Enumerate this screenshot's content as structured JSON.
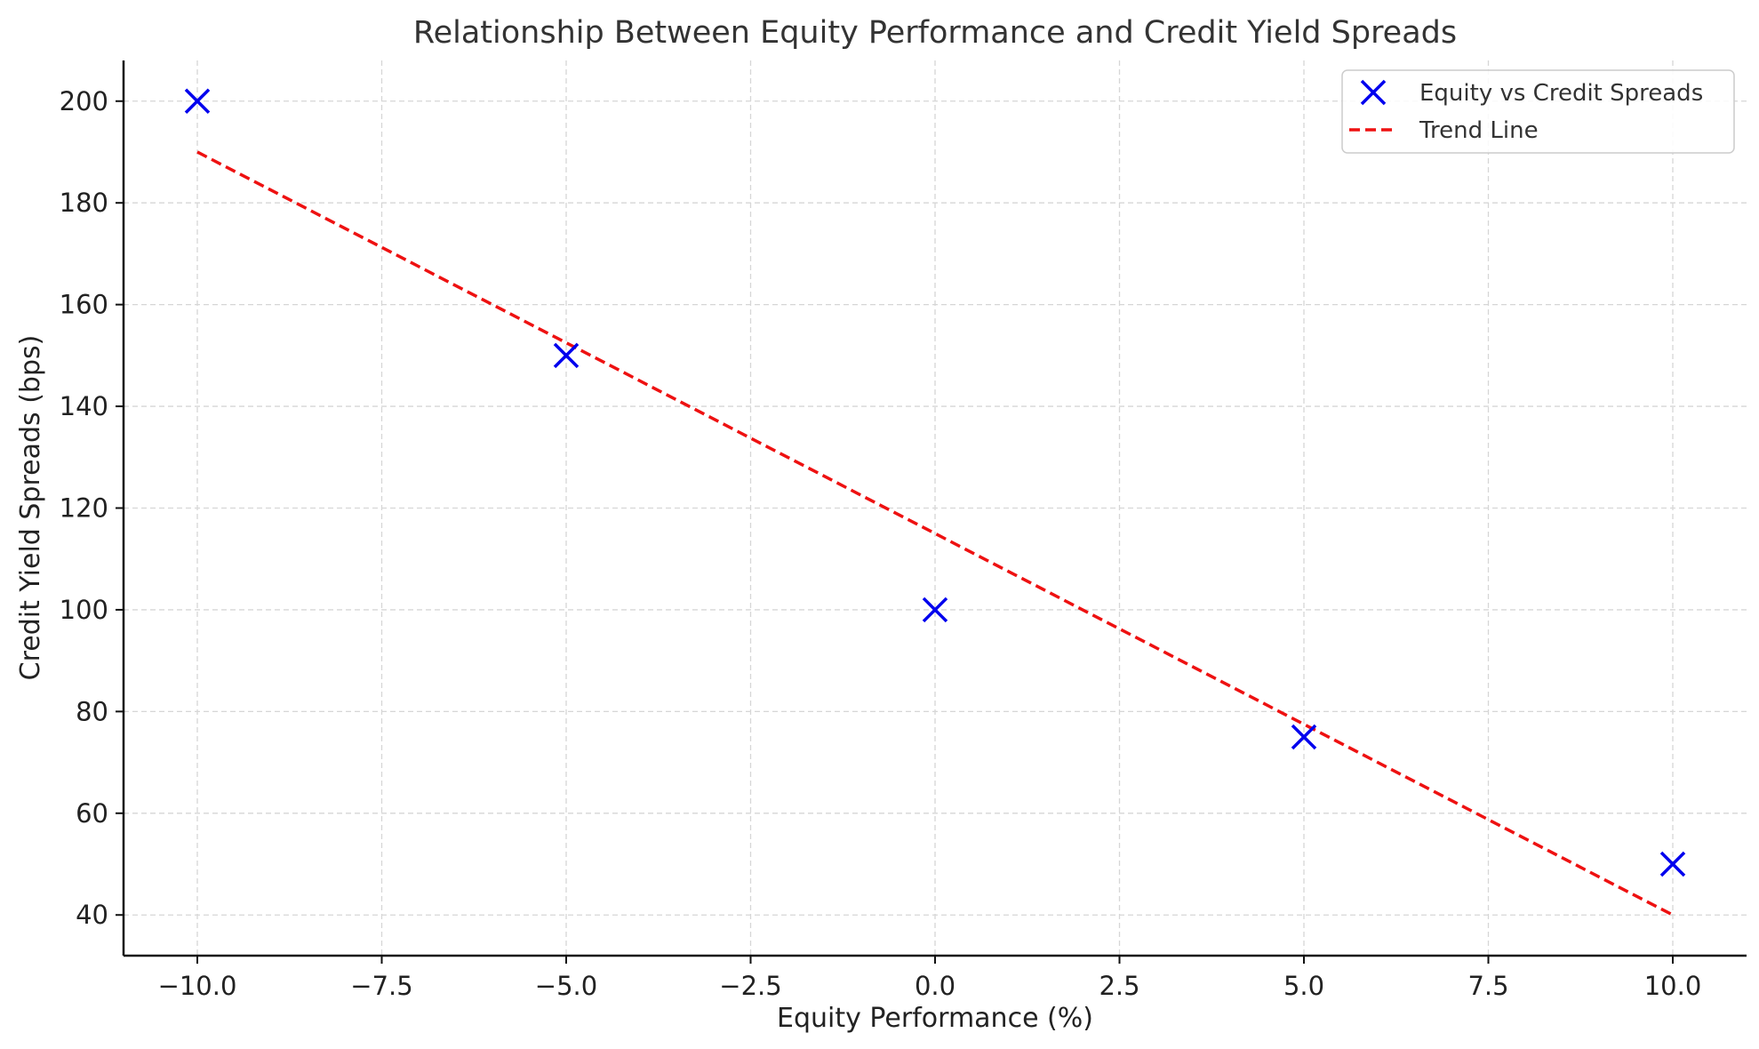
{
  "chart_data": {
    "type": "scatter",
    "title": "Relationship Between Equity Performance and Credit Yield Spreads",
    "xlabel": "Equity Performance (%)",
    "ylabel": "Credit Yield Spreads (bps)",
    "xlim": [
      -11,
      11
    ],
    "ylim": [
      32,
      208
    ],
    "x_ticks": [
      -10,
      -7.5,
      -5,
      -2.5,
      0,
      2.5,
      5,
      7.5,
      10
    ],
    "x_tick_labels": [
      "−10.0",
      "−7.5",
      "−5.0",
      "−2.5",
      "0.0",
      "2.5",
      "5.0",
      "7.5",
      "10.0"
    ],
    "y_ticks": [
      40,
      60,
      80,
      100,
      120,
      140,
      160,
      180,
      200
    ],
    "y_tick_labels": [
      "40",
      "60",
      "80",
      "100",
      "120",
      "140",
      "160",
      "180",
      "200"
    ],
    "grid": true,
    "legend_position": "top-right",
    "series": [
      {
        "name": "Equity vs Credit Spreads",
        "kind": "scatter",
        "marker": "x",
        "color": "#0000ee",
        "x": [
          -10,
          -5,
          0,
          5,
          10
        ],
        "y": [
          200,
          150,
          100,
          75,
          50
        ]
      },
      {
        "name": "Trend Line",
        "kind": "line",
        "style": "dashed",
        "color": "#ee1111",
        "x": [
          -10,
          10
        ],
        "y": [
          190,
          40
        ]
      }
    ]
  }
}
